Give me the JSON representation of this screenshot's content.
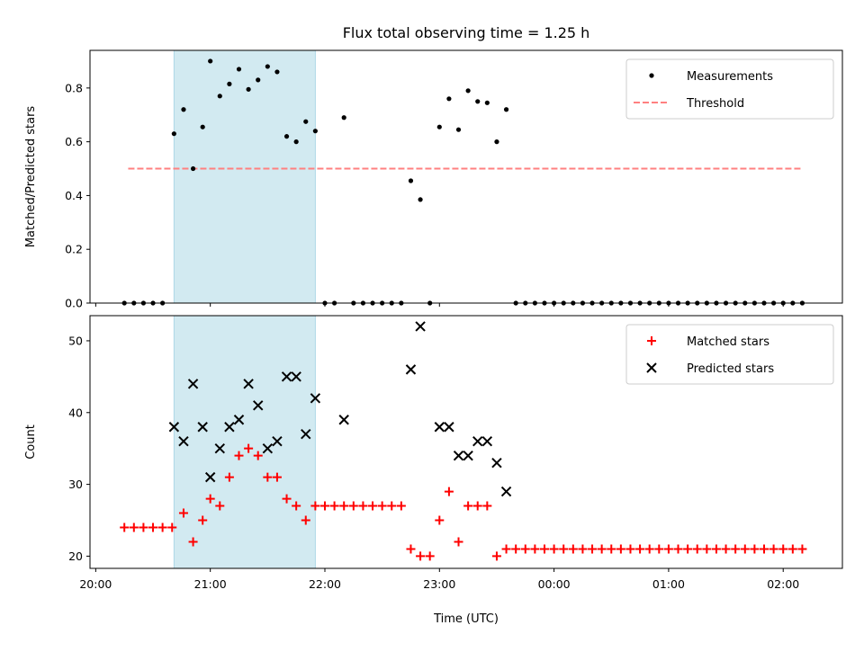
{
  "chart_data": {
    "type": "scatter",
    "title": "Flux total observing time = 1.25 h",
    "xlabel": "Time (UTC)",
    "x_ticks": [
      "20:00",
      "21:00",
      "22:00",
      "23:00",
      "00:00",
      "01:00",
      "02:00"
    ],
    "shaded_interval": [
      "20:41",
      "21:55"
    ],
    "shade_color": "#add8e6",
    "panels": [
      {
        "ylabel": "Matched/Predicted stars",
        "ylim": [
          0,
          0.94
        ],
        "y_ticks": [
          "0.0",
          "0.2",
          "0.4",
          "0.6",
          "0.8"
        ],
        "legend_position": "upper right",
        "threshold": {
          "name": "Threshold",
          "value": 0.5,
          "x_range": [
            "20:17",
            "02:10"
          ],
          "color": "#ff8080",
          "style": "dashed"
        },
        "series": [
          {
            "name": "Measurements",
            "marker": "dot",
            "color": "#000000",
            "points": [
              [
                "20:15",
                0.0
              ],
              [
                "20:20",
                0.0
              ],
              [
                "20:25",
                0.0
              ],
              [
                "20:30",
                0.0
              ],
              [
                "20:35",
                0.0
              ],
              [
                "20:41",
                0.63
              ],
              [
                "20:46",
                0.72
              ],
              [
                "20:51",
                0.5
              ],
              [
                "20:56",
                0.655
              ],
              [
                "21:00",
                0.9
              ],
              [
                "21:05",
                0.77
              ],
              [
                "21:10",
                0.815
              ],
              [
                "21:15",
                0.87
              ],
              [
                "21:20",
                0.795
              ],
              [
                "21:25",
                0.83
              ],
              [
                "21:30",
                0.88
              ],
              [
                "21:35",
                0.86
              ],
              [
                "21:40",
                0.62
              ],
              [
                "21:45",
                0.6
              ],
              [
                "21:50",
                0.675
              ],
              [
                "21:55",
                0.64
              ],
              [
                "22:00",
                0.0
              ],
              [
                "22:05",
                0.0
              ],
              [
                "22:10",
                0.69
              ],
              [
                "22:15",
                0.0
              ],
              [
                "22:20",
                0.0
              ],
              [
                "22:25",
                0.0
              ],
              [
                "22:30",
                0.0
              ],
              [
                "22:35",
                0.0
              ],
              [
                "22:40",
                0.0
              ],
              [
                "22:45",
                0.455
              ],
              [
                "22:50",
                0.385
              ],
              [
                "22:55",
                0.0
              ],
              [
                "23:00",
                0.655
              ],
              [
                "23:05",
                0.76
              ],
              [
                "23:10",
                0.645
              ],
              [
                "23:15",
                0.79
              ],
              [
                "23:20",
                0.75
              ],
              [
                "23:25",
                0.745
              ],
              [
                "23:30",
                0.6
              ],
              [
                "23:35",
                0.72
              ],
              [
                "23:40",
                0.0
              ],
              [
                "23:45",
                0.0
              ],
              [
                "23:50",
                0.0
              ],
              [
                "23:55",
                0.0
              ],
              [
                "00:00",
                0.0
              ],
              [
                "00:05",
                0.0
              ],
              [
                "00:10",
                0.0
              ],
              [
                "00:15",
                0.0
              ],
              [
                "00:20",
                0.0
              ],
              [
                "00:25",
                0.0
              ],
              [
                "00:30",
                0.0
              ],
              [
                "00:35",
                0.0
              ],
              [
                "00:40",
                0.0
              ],
              [
                "00:45",
                0.0
              ],
              [
                "00:50",
                0.0
              ],
              [
                "00:55",
                0.0
              ],
              [
                "01:00",
                0.0
              ],
              [
                "01:05",
                0.0
              ],
              [
                "01:10",
                0.0
              ],
              [
                "01:15",
                0.0
              ],
              [
                "01:20",
                0.0
              ],
              [
                "01:25",
                0.0
              ],
              [
                "01:30",
                0.0
              ],
              [
                "01:35",
                0.0
              ],
              [
                "01:40",
                0.0
              ],
              [
                "01:45",
                0.0
              ],
              [
                "01:50",
                0.0
              ],
              [
                "01:55",
                0.0
              ],
              [
                "02:00",
                0.0
              ],
              [
                "02:05",
                0.0
              ],
              [
                "02:10",
                0.0
              ]
            ]
          }
        ]
      },
      {
        "ylabel": "Count",
        "ylim": [
          18.3,
          53.5
        ],
        "y_ticks": [
          "20",
          "30",
          "40",
          "50"
        ],
        "legend_position": "upper right",
        "series": [
          {
            "name": "Matched stars",
            "marker": "plus",
            "color": "#ff0000",
            "points": [
              [
                "20:15",
                24
              ],
              [
                "20:20",
                24
              ],
              [
                "20:25",
                24
              ],
              [
                "20:30",
                24
              ],
              [
                "20:35",
                24
              ],
              [
                "20:40",
                24
              ],
              [
                "20:46",
                26
              ],
              [
                "20:51",
                22
              ],
              [
                "20:56",
                25
              ],
              [
                "21:00",
                28
              ],
              [
                "21:05",
                27
              ],
              [
                "21:10",
                31
              ],
              [
                "21:15",
                34
              ],
              [
                "21:20",
                35
              ],
              [
                "21:25",
                34
              ],
              [
                "21:30",
                31
              ],
              [
                "21:35",
                31
              ],
              [
                "21:40",
                28
              ],
              [
                "21:45",
                27
              ],
              [
                "21:50",
                25
              ],
              [
                "21:55",
                27
              ],
              [
                "22:00",
                27
              ],
              [
                "22:05",
                27
              ],
              [
                "22:10",
                27
              ],
              [
                "22:15",
                27
              ],
              [
                "22:20",
                27
              ],
              [
                "22:25",
                27
              ],
              [
                "22:30",
                27
              ],
              [
                "22:35",
                27
              ],
              [
                "22:40",
                27
              ],
              [
                "22:45",
                21
              ],
              [
                "22:50",
                20
              ],
              [
                "22:55",
                20
              ],
              [
                "23:00",
                25
              ],
              [
                "23:05",
                29
              ],
              [
                "23:10",
                22
              ],
              [
                "23:15",
                27
              ],
              [
                "23:20",
                27
              ],
              [
                "23:25",
                27
              ],
              [
                "23:30",
                20
              ],
              [
                "23:35",
                21
              ],
              [
                "23:40",
                21
              ],
              [
                "23:45",
                21
              ],
              [
                "23:50",
                21
              ],
              [
                "23:55",
                21
              ],
              [
                "00:00",
                21
              ],
              [
                "00:05",
                21
              ],
              [
                "00:10",
                21
              ],
              [
                "00:15",
                21
              ],
              [
                "00:20",
                21
              ],
              [
                "00:25",
                21
              ],
              [
                "00:30",
                21
              ],
              [
                "00:35",
                21
              ],
              [
                "00:40",
                21
              ],
              [
                "00:45",
                21
              ],
              [
                "00:50",
                21
              ],
              [
                "00:55",
                21
              ],
              [
                "01:00",
                21
              ],
              [
                "01:05",
                21
              ],
              [
                "01:10",
                21
              ],
              [
                "01:15",
                21
              ],
              [
                "01:20",
                21
              ],
              [
                "01:25",
                21
              ],
              [
                "01:30",
                21
              ],
              [
                "01:35",
                21
              ],
              [
                "01:40",
                21
              ],
              [
                "01:45",
                21
              ],
              [
                "01:50",
                21
              ],
              [
                "01:55",
                21
              ],
              [
                "02:00",
                21
              ],
              [
                "02:05",
                21
              ],
              [
                "02:10",
                21
              ]
            ]
          },
          {
            "name": "Predicted stars",
            "marker": "x",
            "color": "#000000",
            "points": [
              [
                "20:41",
                38
              ],
              [
                "20:46",
                36
              ],
              [
                "20:51",
                44
              ],
              [
                "20:56",
                38
              ],
              [
                "21:00",
                31
              ],
              [
                "21:05",
                35
              ],
              [
                "21:10",
                38
              ],
              [
                "21:15",
                39
              ],
              [
                "21:20",
                44
              ],
              [
                "21:25",
                41
              ],
              [
                "21:30",
                35
              ],
              [
                "21:35",
                36
              ],
              [
                "21:40",
                45
              ],
              [
                "21:45",
                45
              ],
              [
                "21:50",
                37
              ],
              [
                "21:55",
                42
              ],
              [
                "22:10",
                39
              ],
              [
                "22:45",
                46
              ],
              [
                "22:50",
                52
              ],
              [
                "23:00",
                38
              ],
              [
                "23:05",
                38
              ],
              [
                "23:10",
                34
              ],
              [
                "23:15",
                34
              ],
              [
                "23:20",
                36
              ],
              [
                "23:25",
                36
              ],
              [
                "23:30",
                33
              ],
              [
                "23:35",
                29
              ]
            ]
          }
        ]
      }
    ]
  }
}
